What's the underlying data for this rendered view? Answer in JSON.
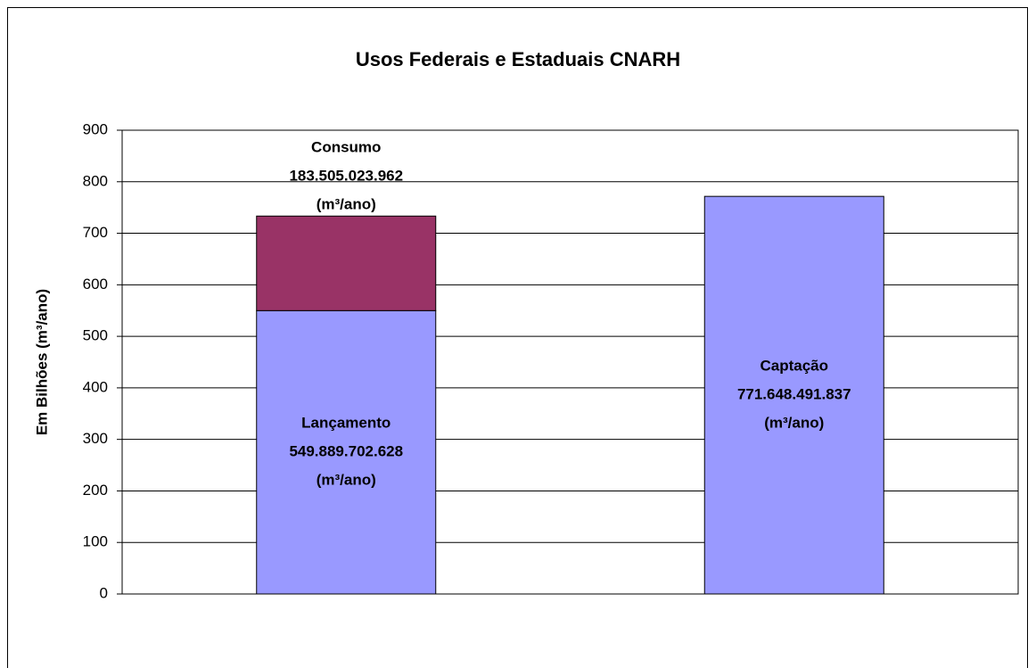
{
  "chart_data": {
    "type": "stacked_bar",
    "title": "Usos Federais e Estaduais CNARH",
    "y_label": "Em Bilhões (m³/ano)",
    "categories": [
      null,
      null
    ],
    "series": [
      {
        "name": "Lançamento",
        "color": "#9999ff",
        "values": [
          549.889702628,
          null
        ],
        "value_labels": [
          "549.889.702.628",
          null
        ]
      },
      {
        "name": "Consumo",
        "color": "#993366",
        "values": [
          183.505023962,
          null
        ],
        "value_labels": [
          "183.505.023.962",
          null
        ]
      },
      {
        "name": "Captação",
        "color": "#9999ff",
        "values": [
          null,
          771.648491837
        ],
        "value_labels": [
          null,
          "771.648.491.837"
        ]
      }
    ],
    "data_label_unit": "(m³/ano)",
    "ylim": [
      0,
      900
    ],
    "yticks": [
      0,
      100,
      200,
      300,
      400,
      500,
      600,
      700,
      800,
      900
    ],
    "grid": true
  }
}
